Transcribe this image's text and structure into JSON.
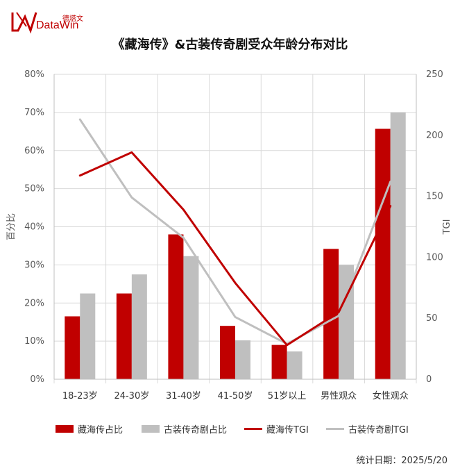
{
  "brand": {
    "name_cn": "德塔文",
    "name_en": "DataWin",
    "logo_icon": "datawin-logo-icon"
  },
  "title": "《藏海传》&古装传奇剧受众年龄分布对比",
  "footer": {
    "date_text": "统计日期：2025/5/20"
  },
  "colors": {
    "red": "#c00000",
    "gray": "#bfbfbf",
    "grid": "#d9d9d9",
    "axis": "#595959"
  },
  "chart_data": {
    "type": "bar",
    "categories": [
      "18-23岁",
      "24-30岁",
      "31-40岁",
      "41-50岁",
      "51岁以上",
      "男性观众",
      "女性观众"
    ],
    "series": [
      {
        "name": "藏海传占比",
        "type": "bar",
        "axis": "left",
        "values": [
          16.5,
          22.5,
          38.0,
          14.0,
          9.0,
          34.2,
          65.7
        ]
      },
      {
        "name": "古装传奇剧占比",
        "type": "bar",
        "axis": "left",
        "values": [
          22.5,
          27.5,
          32.3,
          10.2,
          7.3,
          30.0,
          70.0
        ]
      },
      {
        "name": "藏海传TGI",
        "type": "line",
        "axis": "right",
        "values": [
          167,
          186,
          139,
          79,
          28,
          55,
          142
        ]
      },
      {
        "name": "古装传奇剧TGI",
        "type": "line",
        "axis": "right",
        "values": [
          213,
          149,
          116,
          51,
          29,
          52,
          162
        ]
      }
    ],
    "ylabel": "百分比",
    "y2label": "TGI",
    "ylim": [
      0,
      80
    ],
    "yticks": [
      "0%",
      "10%",
      "20%",
      "30%",
      "40%",
      "50%",
      "60%",
      "70%",
      "80%"
    ],
    "y2lim": [
      0,
      250
    ],
    "y2ticks": [
      "0",
      "50",
      "100",
      "150",
      "200",
      "250"
    ],
    "grid": true,
    "legend": "bottom"
  }
}
